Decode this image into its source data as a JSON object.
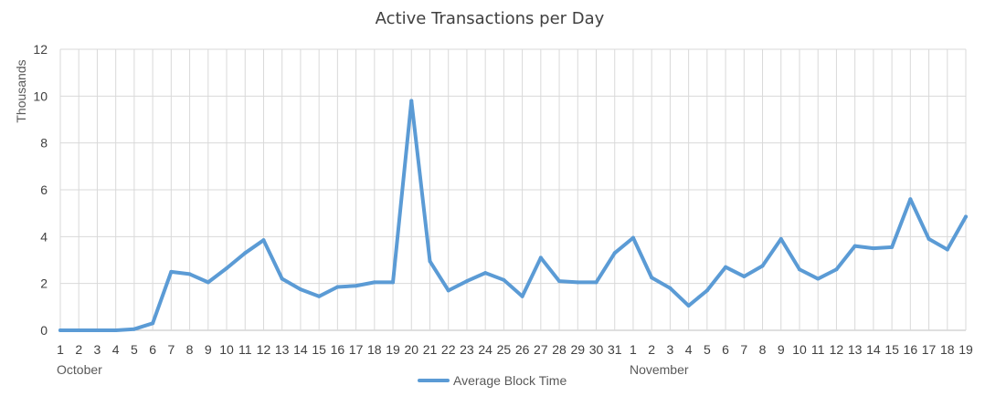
{
  "chart_data": {
    "type": "line",
    "title": "Active Transactions per Day",
    "ylabel": "Thousands",
    "xlabel": "",
    "ylim": [
      0,
      12
    ],
    "yticks": [
      "0",
      "2",
      "4",
      "6",
      "8",
      "10",
      "12"
    ],
    "grid": true,
    "legend_position": "bottom",
    "month_groups": [
      {
        "label": "October",
        "start_index": 0
      },
      {
        "label": "November",
        "start_index": 31
      }
    ],
    "categories": [
      "1",
      "2",
      "3",
      "4",
      "5",
      "6",
      "7",
      "8",
      "9",
      "10",
      "11",
      "12",
      "13",
      "14",
      "15",
      "16",
      "17",
      "18",
      "19",
      "20",
      "21",
      "22",
      "23",
      "24",
      "25",
      "26",
      "27",
      "28",
      "29",
      "30",
      "31",
      "1",
      "2",
      "3",
      "4",
      "5",
      "6",
      "7",
      "8",
      "9",
      "10",
      "11",
      "12",
      "13",
      "14",
      "15",
      "16",
      "17",
      "18",
      "19"
    ],
    "series": [
      {
        "name": "Average Block Time",
        "color": "#5b9bd5",
        "values": [
          0,
          0,
          0,
          0,
          0.05,
          0.3,
          2.5,
          2.4,
          2.05,
          2.65,
          3.3,
          3.85,
          2.2,
          1.75,
          1.45,
          1.85,
          1.9,
          2.05,
          2.05,
          9.8,
          2.95,
          1.7,
          2.1,
          2.45,
          2.15,
          1.45,
          3.1,
          2.1,
          2.05,
          2.05,
          3.3,
          3.95,
          2.25,
          1.8,
          1.05,
          1.7,
          2.7,
          2.3,
          2.75,
          3.9,
          2.6,
          2.2,
          2.6,
          3.6,
          3.5,
          3.55,
          5.6,
          3.9,
          3.45,
          4.85
        ]
      }
    ]
  }
}
